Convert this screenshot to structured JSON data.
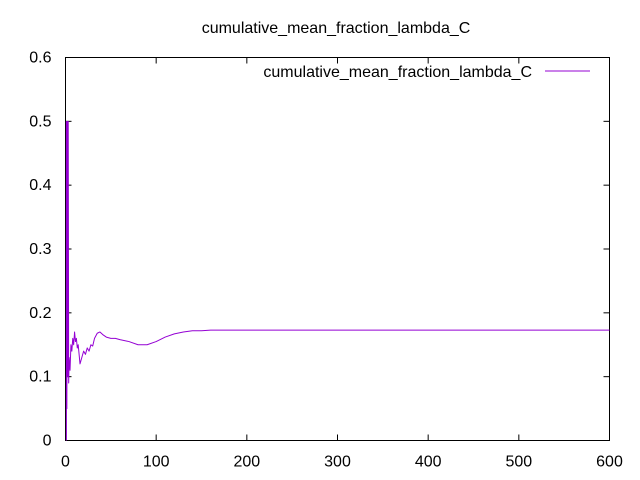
{
  "chart_data": {
    "type": "line",
    "title": "cumulative_mean_fraction_lambda_C",
    "xlabel": "",
    "ylabel": "",
    "xlim": [
      0,
      600
    ],
    "ylim": [
      0,
      0.6
    ],
    "x_ticks": [
      0,
      100,
      200,
      300,
      400,
      500,
      600
    ],
    "y_ticks": [
      0,
      0.1,
      0.2,
      0.3,
      0.4,
      0.5,
      0.6
    ],
    "grid": false,
    "legend_position": "top-right",
    "series": [
      {
        "name": "cumulative_mean_fraction_lambda_C",
        "color": "#9400d3",
        "points": [
          [
            1,
            0
          ],
          [
            1,
            0.5
          ],
          [
            1.5,
            0.05
          ],
          [
            2,
            0.5
          ],
          [
            2.5,
            0.1
          ],
          [
            3,
            0.5
          ],
          [
            3.5,
            0.09
          ],
          [
            4,
            0.13
          ],
          [
            5,
            0.11
          ],
          [
            6,
            0.15
          ],
          [
            7,
            0.14
          ],
          [
            8,
            0.16
          ],
          [
            9,
            0.15
          ],
          [
            10,
            0.17
          ],
          [
            11,
            0.155
          ],
          [
            12,
            0.16
          ],
          [
            13,
            0.145
          ],
          [
            14,
            0.15
          ],
          [
            15,
            0.135
          ],
          [
            16,
            0.12
          ],
          [
            17,
            0.125
          ],
          [
            18,
            0.13
          ],
          [
            20,
            0.14
          ],
          [
            22,
            0.135
          ],
          [
            24,
            0.145
          ],
          [
            26,
            0.14
          ],
          [
            28,
            0.15
          ],
          [
            30,
            0.148
          ],
          [
            32,
            0.16
          ],
          [
            35,
            0.168
          ],
          [
            38,
            0.17
          ],
          [
            41,
            0.166
          ],
          [
            45,
            0.162
          ],
          [
            50,
            0.16
          ],
          [
            55,
            0.16
          ],
          [
            60,
            0.158
          ],
          [
            70,
            0.155
          ],
          [
            80,
            0.15
          ],
          [
            90,
            0.15
          ],
          [
            100,
            0.155
          ],
          [
            110,
            0.162
          ],
          [
            120,
            0.167
          ],
          [
            130,
            0.17
          ],
          [
            140,
            0.172
          ],
          [
            150,
            0.172
          ],
          [
            160,
            0.173
          ],
          [
            200,
            0.173
          ],
          [
            300,
            0.173
          ],
          [
            400,
            0.173
          ],
          [
            500,
            0.173
          ],
          [
            600,
            0.173
          ]
        ]
      }
    ]
  }
}
